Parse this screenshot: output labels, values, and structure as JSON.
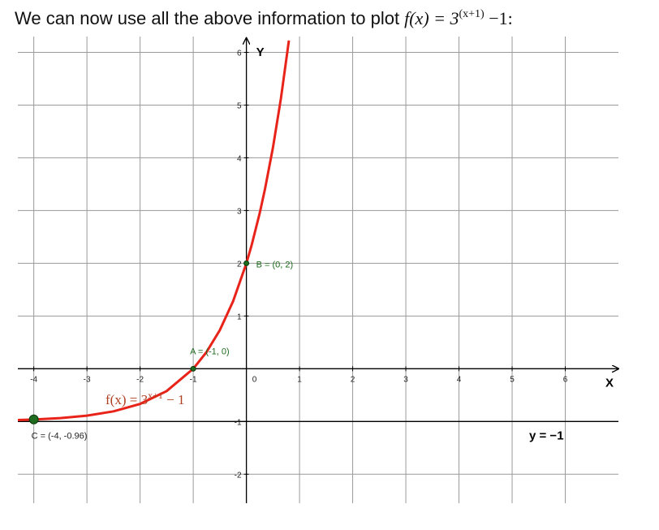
{
  "chart_data": {
    "type": "line",
    "title": "We can now use all the above information to plot",
    "title_formula": {
      "base": "f(x) = 3",
      "exponent": "(x+1)",
      "tail": " −1:"
    },
    "x": [
      -4.3,
      -4,
      -3.5,
      -3,
      -2.5,
      -2,
      -1.5,
      -1,
      -0.75,
      -0.5,
      -0.25,
      0,
      0.1,
      0.25,
      0.35,
      0.5,
      0.65,
      0.8
    ],
    "series": [
      {
        "color": "#e8231a",
        "values": [
          -0.973,
          -0.963,
          -0.936,
          -0.889,
          -0.808,
          -0.667,
          -0.423,
          0,
          0.316,
          0.732,
          1.28,
          2,
          2.348,
          2.948,
          3.407,
          4.196,
          5.127,
          6.225
        ]
      }
    ],
    "curve_label": {
      "base": "f(x) = 3",
      "exponent": "x+1",
      "tail": " − 1",
      "color": "#b04020"
    },
    "points": [
      {
        "label": "A = (-1, 0)",
        "x": -1,
        "y": 0
      },
      {
        "label": "B = (0, 2)",
        "x": 0,
        "y": 2
      },
      {
        "label": "C = (-4, -0.96)",
        "x": -4,
        "y": -0.96
      }
    ],
    "point_color": "#1f6b1f",
    "asymptote": {
      "y": -1,
      "label": "y = −1"
    },
    "xlabel": "X",
    "ylabel": "Y",
    "xlim": [
      -4.3,
      7.0
    ],
    "ylim": [
      -2.55,
      6.3
    ],
    "xticks": [
      -4,
      -3,
      -2,
      -1,
      0,
      1,
      2,
      3,
      4,
      5,
      6
    ],
    "yticks": [
      -2,
      -1,
      1,
      2,
      3,
      4,
      5,
      6
    ],
    "grid": true
  }
}
